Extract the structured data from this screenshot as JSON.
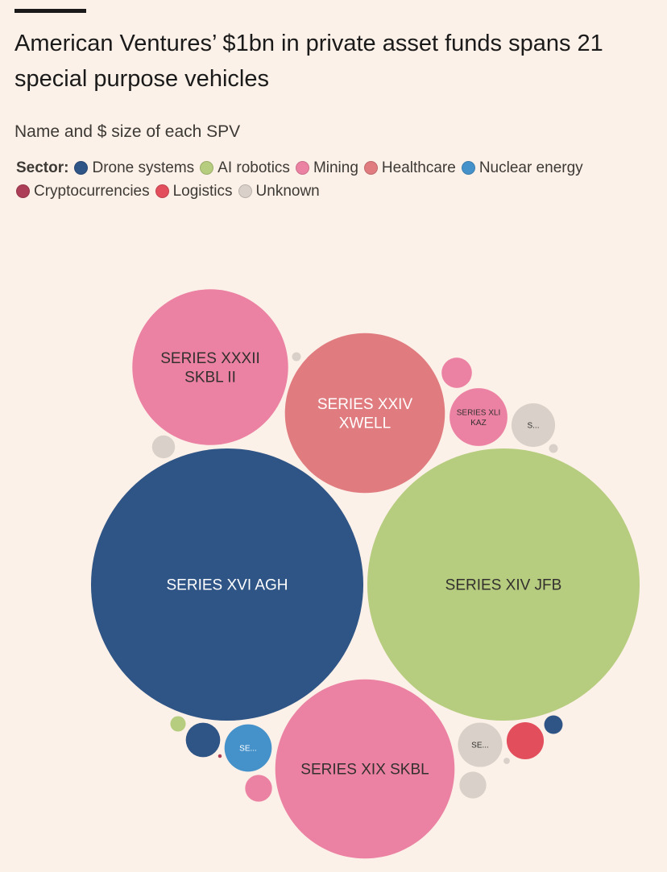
{
  "header": {
    "title": "American Ventures’ $1bn in private asset funds spans 21 special purpose vehicles",
    "subtitle": "Name and $ size of each SPV"
  },
  "legend": {
    "label": "Sector:",
    "items": [
      {
        "name": "Drone systems",
        "color": "#2f5486"
      },
      {
        "name": "AI robotics",
        "color": "#b6cc7e"
      },
      {
        "name": "Mining",
        "color": "#ec82a3"
      },
      {
        "name": "Healthcare",
        "color": "#e07b7f"
      },
      {
        "name": "Nuclear energy",
        "color": "#4592cb"
      },
      {
        "name": "Cryptocurrencies",
        "color": "#ac3e57"
      },
      {
        "name": "Logistics",
        "color": "#e24e5c"
      },
      {
        "name": "Unknown",
        "color": "#d9d1c9"
      }
    ]
  },
  "chart_data": {
    "type": "bubble",
    "title": "American Ventures’ $1bn in private asset funds spans 21 special purpose vehicles",
    "subtitle": "Name and $ size of each SPV",
    "size_unit": "relative area (estimated)",
    "bubbles": [
      {
        "label": "SERIES XVI AGH",
        "sector": "Drone systems",
        "size": 113
      },
      {
        "label": "SERIES XIV JFB",
        "sector": "AI robotics",
        "size": 113
      },
      {
        "label": "SERIES XIX SKBL",
        "sector": "Mining",
        "size": 49
      },
      {
        "label": "SERIES XXIV XWELL",
        "sector": "Healthcare",
        "size": 39
      },
      {
        "label": "SERIES XXXII SKBL II",
        "sector": "Mining",
        "size": 37
      },
      {
        "label": "SERIES XLI KAZ",
        "sector": "Mining",
        "size": 5.1
      },
      {
        "label": "S...",
        "sector": "Unknown",
        "size": 2.9
      },
      {
        "label": "SE...",
        "sector": "Unknown",
        "size": 3.0
      },
      {
        "label": "SE...",
        "sector": "Nuclear energy",
        "size": 3.4
      },
      {
        "label": "",
        "sector": "Mining",
        "size": 1.4
      },
      {
        "label": "",
        "sector": "Unknown",
        "size": 0.8
      },
      {
        "label": "",
        "sector": "Unknown",
        "size": 0.12
      },
      {
        "label": "",
        "sector": "Unknown",
        "size": 0.12
      },
      {
        "label": "",
        "sector": "Unknown",
        "size": 1.1
      },
      {
        "label": "",
        "sector": "Unknown",
        "size": 0.06
      },
      {
        "label": "",
        "sector": "AI robotics",
        "size": 0.36
      },
      {
        "label": "",
        "sector": "Drone systems",
        "size": 1.8
      },
      {
        "label": "",
        "sector": "Drone systems",
        "size": 0.52
      },
      {
        "label": "",
        "sector": "Logistics",
        "size": 2.1
      },
      {
        "label": "",
        "sector": "Mining",
        "size": 1.1
      },
      {
        "label": "",
        "sector": "Cryptocurrencies",
        "size": 0.02
      }
    ]
  }
}
